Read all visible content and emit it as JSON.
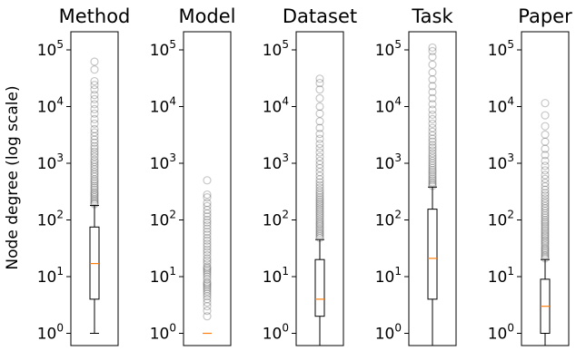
{
  "chart_data": {
    "type": "box",
    "ylabel": "Node degree (log scale)",
    "yscale": "log",
    "ylim": [
      0.6,
      200000
    ],
    "yticks": [
      {
        "value": 1,
        "base": "10",
        "exp": "0"
      },
      {
        "value": 10,
        "base": "10",
        "exp": "1"
      },
      {
        "value": 100,
        "base": "10",
        "exp": "2"
      },
      {
        "value": 1000,
        "base": "10",
        "exp": "3"
      },
      {
        "value": 10000,
        "base": "10",
        "exp": "4"
      },
      {
        "value": 100000,
        "base": "10",
        "exp": "5"
      }
    ],
    "colors": {
      "median": "#ff7f0e",
      "box": "#000000",
      "flier": "#000000"
    },
    "panels": [
      {
        "title": "Method",
        "whisker_low": 1,
        "q1": 4,
        "median": 17,
        "q3": 75,
        "whisker_high": 180,
        "fliers": [
          190,
          200,
          215,
          230,
          250,
          270,
          290,
          310,
          340,
          370,
          400,
          440,
          480,
          520,
          580,
          640,
          700,
          780,
          860,
          950,
          1050,
          1150,
          1300,
          1450,
          1600,
          1800,
          2000,
          2300,
          2600,
          3000,
          3500,
          4000,
          5000,
          6000,
          7500,
          9000,
          11000,
          13500,
          16000,
          20000,
          24000,
          28000,
          45000,
          62000
        ]
      },
      {
        "title": "Model",
        "whisker_low": 1,
        "q1": 1,
        "median": 1,
        "q3": 1,
        "whisker_high": 1,
        "fliers": [
          2,
          2.5,
          3,
          3.5,
          4,
          4.5,
          5,
          5.5,
          6,
          6.5,
          7,
          7.5,
          8,
          9,
          10,
          11,
          12,
          13,
          14,
          15,
          17,
          19,
          21,
          24,
          27,
          30,
          34,
          38,
          43,
          48,
          55,
          62,
          70,
          80,
          90,
          100,
          115,
          130,
          150,
          175,
          200,
          250,
          280,
          500
        ]
      },
      {
        "title": "Dataset",
        "whisker_low": 0.5,
        "q1": 2,
        "median": 4,
        "q3": 20,
        "whisker_high": 45,
        "fliers": [
          48,
          52,
          56,
          60,
          65,
          70,
          76,
          82,
          88,
          95,
          103,
          112,
          121,
          131,
          142,
          154,
          167,
          181,
          196,
          212,
          230,
          250,
          275,
          300,
          330,
          370,
          410,
          460,
          520,
          600,
          700,
          820,
          950,
          1100,
          1300,
          1550,
          1850,
          2200,
          2700,
          3300,
          4200,
          5500,
          7500,
          10000,
          14000,
          20000,
          26000,
          31000
        ]
      },
      {
        "title": "Task",
        "whisker_low": 0.5,
        "q1": 4,
        "median": 21,
        "q3": 155,
        "whisker_high": 380,
        "fliers": [
          400,
          430,
          460,
          500,
          540,
          590,
          640,
          700,
          760,
          830,
          910,
          1000,
          1100,
          1220,
          1350,
          1500,
          1680,
          1880,
          2100,
          2400,
          2700,
          3100,
          3600,
          4200,
          5000,
          6000,
          7200,
          8800,
          11000,
          14000,
          18000,
          23000,
          30000,
          40000,
          55000,
          75000,
          95000,
          110000
        ]
      },
      {
        "title": "Paper",
        "whisker_low": 0.5,
        "q1": 1,
        "median": 3,
        "q3": 9,
        "whisker_high": 20,
        "fliers": [
          21,
          22.5,
          24,
          26,
          28,
          30,
          32,
          35,
          38,
          41,
          44,
          48,
          52,
          56,
          61,
          66,
          72,
          78,
          85,
          92,
          100,
          110,
          120,
          132,
          145,
          160,
          175,
          195,
          215,
          240,
          270,
          300,
          340,
          390,
          450,
          530,
          620,
          750,
          900,
          1100,
          1400,
          1800,
          2400,
          3200,
          4500,
          7000,
          11500
        ]
      }
    ]
  }
}
